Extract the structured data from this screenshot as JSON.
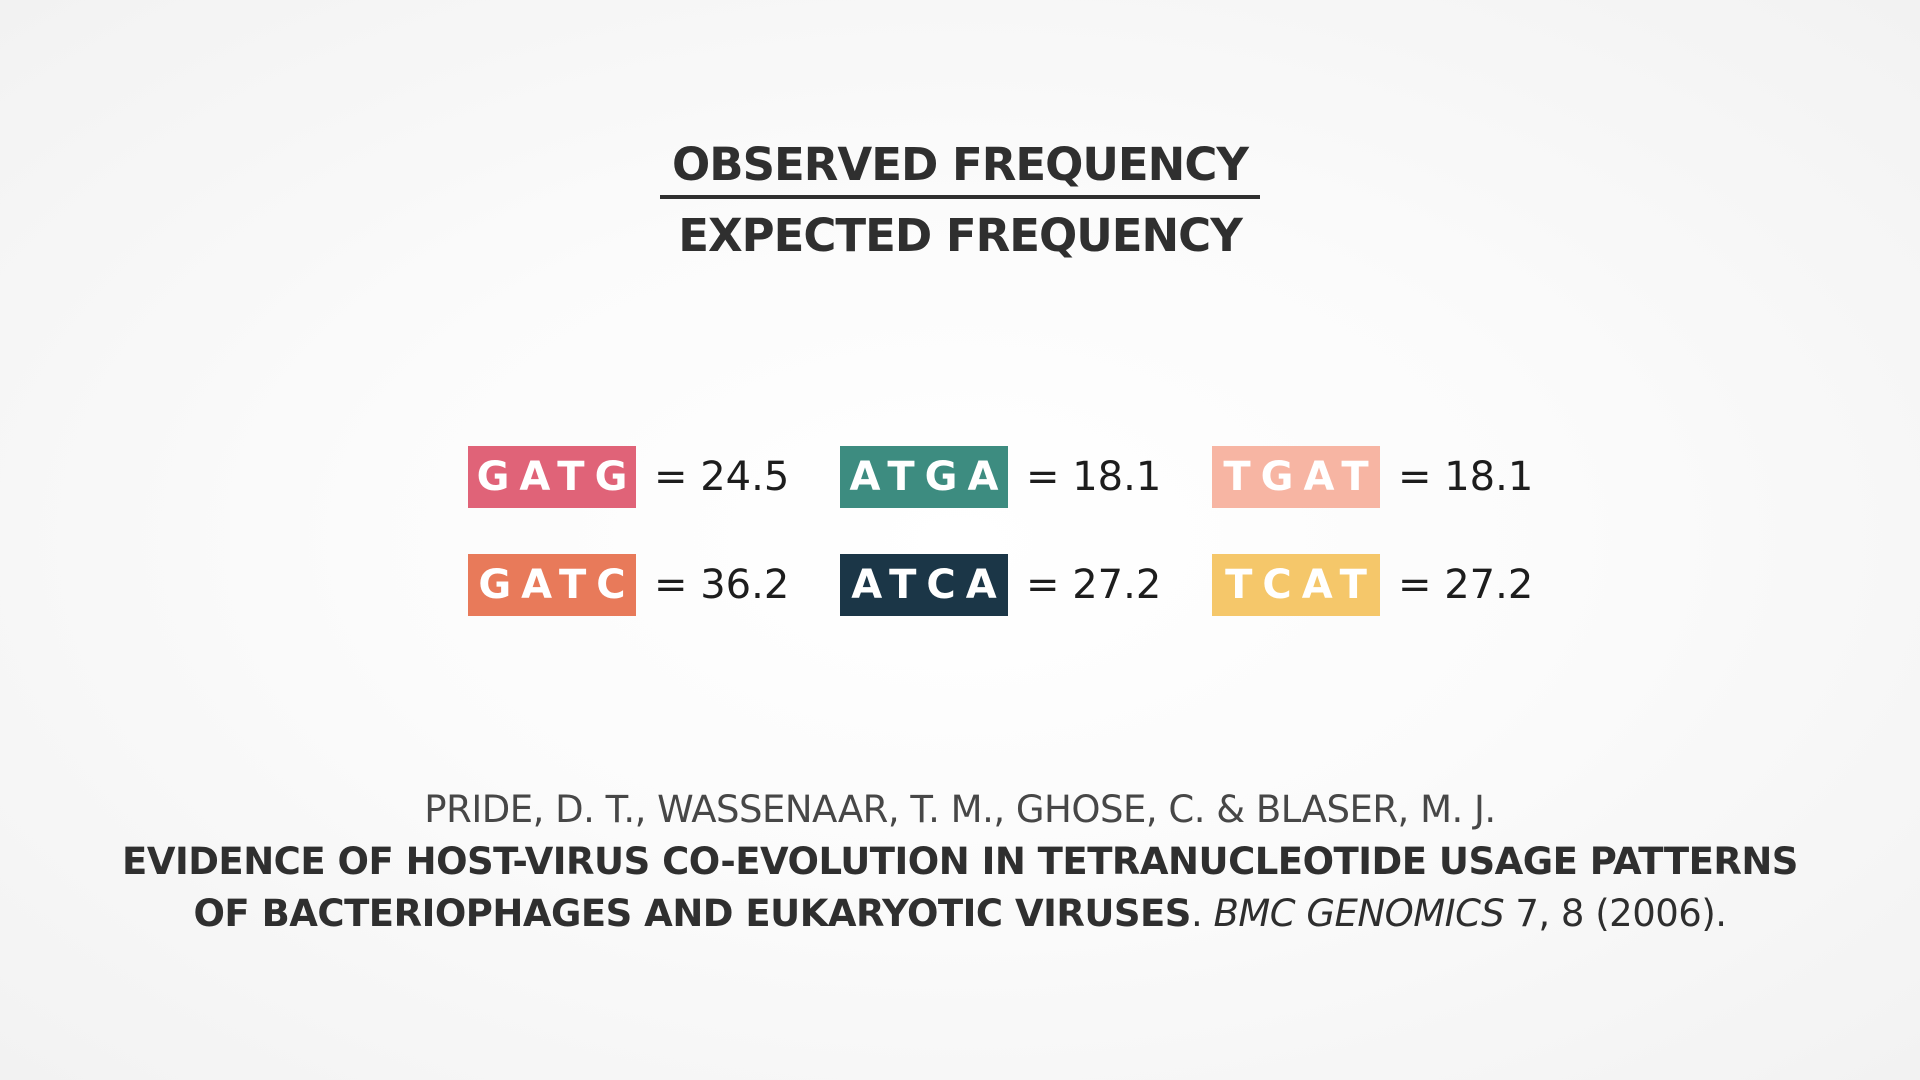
{
  "fraction": {
    "numerator": "OBSERVED FREQUENCY",
    "denominator": "EXPECTED FREQUENCY"
  },
  "tetranucleotides": [
    {
      "seq": "GATG",
      "value": "= 24.5",
      "color": "#e06378"
    },
    {
      "seq": "ATGA",
      "value": "= 18.1",
      "color": "#3d8c80"
    },
    {
      "seq": "TGAT",
      "value": "= 18.1",
      "color": "#f7b5a3"
    },
    {
      "seq": "GATC",
      "value": "= 36.2",
      "color": "#e87a5a"
    },
    {
      "seq": "ATCA",
      "value": "= 27.2",
      "color": "#1b3647"
    },
    {
      "seq": "TCAT",
      "value": "= 27.2",
      "color": "#f5c76a"
    }
  ],
  "citation": {
    "authors": "PRIDE, D. T., WASSENAAR, T. M., GHOSE, C. & BLASER, M. J.",
    "title_line1": "EVIDENCE OF HOST-VIRUS CO-EVOLUTION IN TETRANUCLEOTIDE USAGE PATTERNS",
    "title_line2": "OF BACTERIOPHAGES AND EUKARYOTIC VIRUSES",
    "period": ". ",
    "journal": "BMC GENOMICS",
    "volume_info": " 7, 8 (2006)."
  }
}
